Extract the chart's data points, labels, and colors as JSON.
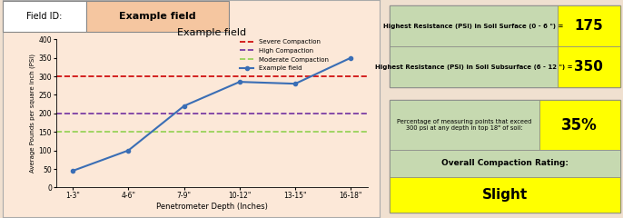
{
  "field_id_label": "Field ID:",
  "field_id_value": "Example field",
  "chart_title": "Example field",
  "x_labels": [
    "1-3\"",
    "4-6\"",
    "7-9\"",
    "10-12\"",
    "13-15\"",
    "16-18\""
  ],
  "x_label": "Penetrometer Depth (Inches)",
  "y_label": "Average Pounds per square inch (PSI)",
  "y_data": [
    45,
    100,
    220,
    285,
    280,
    350
  ],
  "severe_level": 300,
  "high_level": 200,
  "moderate_level": 150,
  "chart_bg": "#fce8d8",
  "outer_bg": "#f0e0d0",
  "field_id_label_bg": "#ffffff",
  "field_id_value_bg": "#f5c6a0",
  "line_color": "#3a6eb5",
  "severe_color": "#cc0000",
  "high_color": "#7030a0",
  "moderate_color": "#92d050",
  "right_bg": "#f0e8d8",
  "table1_bg": "#c6d9b0",
  "table1_val_bg": "#ffff00",
  "table2_bg": "#c6d9b0",
  "table2_val_bg": "#ffff00",
  "rating_label_bg": "#c6d9b0",
  "rating_val_bg": "#ffff00",
  "surface_resistance": "175",
  "subsurface_resistance": "350",
  "percentage_exceed": "35%",
  "overall_rating": "Slight",
  "ylim": [
    0,
    400
  ],
  "yticks": [
    0,
    50,
    100,
    150,
    200,
    250,
    300,
    350,
    400
  ],
  "legend_labels": [
    "Severe Compaction",
    "High Compaction",
    "Moderate Compaction",
    "Example field"
  ]
}
